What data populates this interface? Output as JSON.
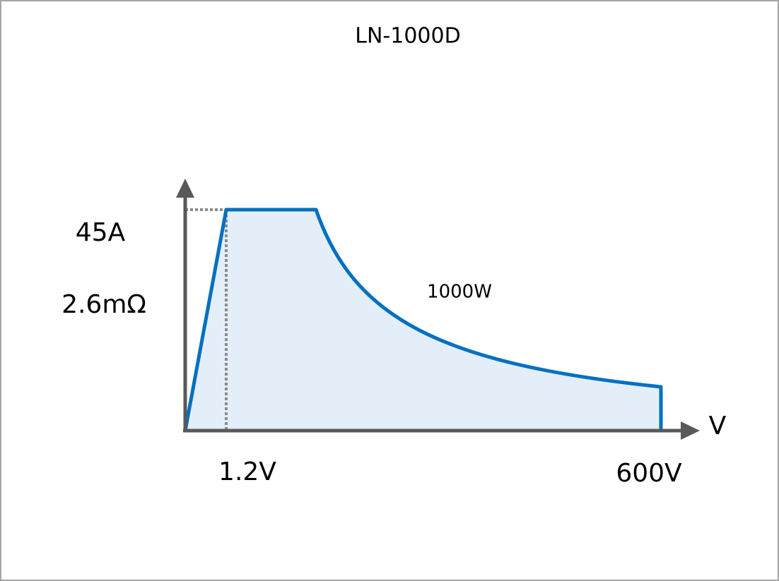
{
  "title": "LN-1000D",
  "labels": {
    "current": "45A",
    "resistance": "2.6mΩ",
    "power": "1000W",
    "voltage_min": "1.2V",
    "voltage_max": "600V",
    "x_axis": "V"
  }
}
